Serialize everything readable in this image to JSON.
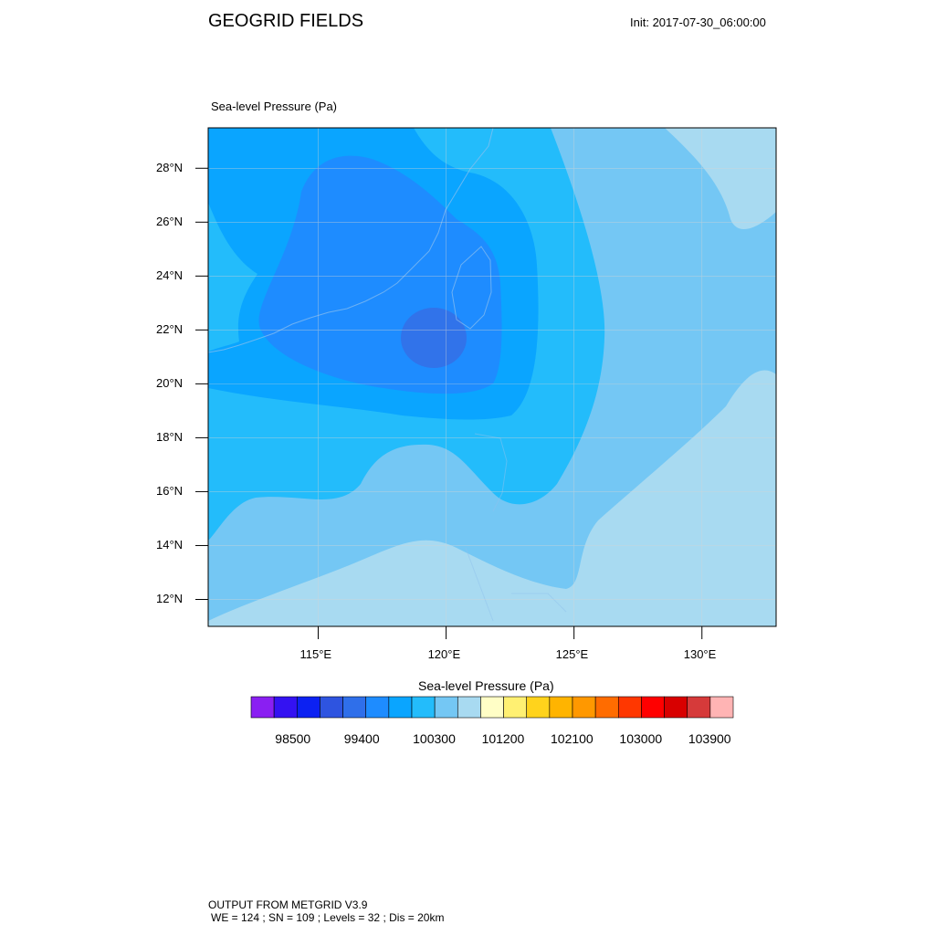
{
  "header": {
    "title": "GEOGRID FIELDS",
    "init": "Init: 2017-07-30_06:00:00"
  },
  "map": {
    "field_label": "Sea-level Pressure   (Pa)",
    "lat_ticks": [
      {
        "label": "28°N",
        "lat": 28
      },
      {
        "label": "26°N",
        "lat": 26
      },
      {
        "label": "24°N",
        "lat": 24
      },
      {
        "label": "22°N",
        "lat": 22
      },
      {
        "label": "20°N",
        "lat": 20
      },
      {
        "label": "18°N",
        "lat": 18
      },
      {
        "label": "16°N",
        "lat": 16
      },
      {
        "label": "14°N",
        "lat": 14
      },
      {
        "label": "12°N",
        "lat": 12
      }
    ],
    "lon_ticks": [
      {
        "label": "115°E",
        "lon": 115
      },
      {
        "label": "120°E",
        "lon": 120
      },
      {
        "label": "125°E",
        "lon": 125
      },
      {
        "label": "130°E",
        "lon": 130
      }
    ],
    "extent": {
      "lon_min": 110.7,
      "lon_max": 132.9,
      "lat_min": 11.0,
      "lat_max": 29.5
    },
    "fill_colors": {
      "lowest": "#3173ea",
      "low": "#1e8cff",
      "mid": "#0aa5ff",
      "midhigh": "#23bcfb",
      "high": "#74c7f4",
      "highest": "#a8daf1"
    }
  },
  "colorbar": {
    "title": "Sea-level Pressure  (Pa)",
    "colors": [
      "#8a1ff2",
      "#3412f2",
      "#0c21f2",
      "#2e54e0",
      "#2f6fea",
      "#1e8cff",
      "#0aa5ff",
      "#23bcfb",
      "#74c7f4",
      "#a8daf1",
      "#fffec6",
      "#fff072",
      "#ffd31c",
      "#ffb400",
      "#ff9800",
      "#ff6c00",
      "#ff3700",
      "#ff0000",
      "#d80000",
      "#d63a3a",
      "#ffb4b4"
    ],
    "tick_labels": [
      "98500",
      "99400",
      "100300",
      "101200",
      "102100",
      "103000",
      "103900"
    ]
  },
  "footer": {
    "line1": "OUTPUT FROM METGRID V3.9",
    "line2": "WE = 124 ; SN = 109 ; Levels = 32 ; Dis = 20km"
  }
}
